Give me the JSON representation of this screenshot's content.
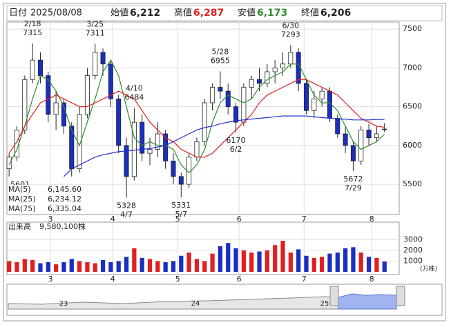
{
  "header": {
    "date_label": "日付",
    "date": "2025/08/08",
    "open_label": "始値",
    "open": "6,212",
    "high_label": "高値",
    "high": "6,287",
    "low_label": "安値",
    "low": "6,173",
    "close_label": "終値",
    "close": "6,206"
  },
  "chart_data": {
    "type": "candlestick",
    "x": [
      0,
      2.5,
      5,
      7.5,
      10,
      12.5,
      15,
      17.5,
      20,
      22.5,
      25,
      27.5,
      30,
      32.5,
      35,
      37.5,
      40,
      42.5,
      45,
      47.5,
      50,
      52.5,
      55,
      57.5,
      60,
      62.5,
      65,
      67.5,
      70,
      72.5,
      75,
      77.5,
      80,
      82.5,
      85,
      87.5,
      90,
      92.5,
      95,
      97.5,
      100,
      102.5,
      105,
      107.5,
      110,
      112.5,
      115,
      117.5,
      120
    ],
    "open": [
      5700,
      5850,
      6200,
      6850,
      7100,
      6900,
      6400,
      6550,
      6250,
      5700,
      6400,
      6900,
      7200,
      7050,
      6600,
      6000,
      5600,
      6300,
      5900,
      5950,
      6150,
      5800,
      5600,
      5500,
      5850,
      6050,
      6550,
      6750,
      6700,
      6500,
      6300,
      6750,
      6850,
      6800,
      6950,
      7000,
      7050,
      7200,
      6800,
      6450,
      6600,
      6700,
      6350,
      6150,
      6000,
      5800,
      6200,
      6100,
      6212
    ],
    "high": [
      5900,
      6250,
      6900,
      7315,
      7200,
      6950,
      6700,
      6600,
      6300,
      6500,
      7000,
      7311,
      7250,
      7100,
      6650,
      6100,
      6484,
      6400,
      6100,
      6300,
      6200,
      5900,
      5650,
      5900,
      6100,
      6600,
      6800,
      6955,
      6800,
      6550,
      6800,
      6900,
      7000,
      7050,
      7100,
      7200,
      7293,
      7250,
      6850,
      6700,
      6750,
      6750,
      6400,
      6250,
      6050,
      6250,
      6280,
      6250,
      6287
    ],
    "low": [
      5601,
      5800,
      6150,
      6800,
      6800,
      6300,
      6200,
      6150,
      5600,
      5650,
      6350,
      6850,
      6900,
      6500,
      5900,
      5328,
      5550,
      5800,
      5750,
      5850,
      5700,
      5500,
      5331,
      5450,
      5800,
      6000,
      6450,
      6600,
      6400,
      6170,
      6250,
      6600,
      6700,
      6750,
      6800,
      6900,
      7000,
      6700,
      6400,
      6350,
      6500,
      6300,
      6100,
      5900,
      5672,
      5750,
      6000,
      6050,
      6173
    ],
    "close": [
      5850,
      6200,
      6850,
      7100,
      6900,
      6400,
      6550,
      6250,
      5700,
      6400,
      6900,
      7200,
      7050,
      6600,
      6000,
      5600,
      6300,
      5900,
      5950,
      6150,
      5800,
      5600,
      5500,
      5850,
      6050,
      6550,
      6750,
      6700,
      6500,
      6300,
      6750,
      6850,
      6800,
      6950,
      7000,
      7050,
      7200,
      6800,
      6450,
      6600,
      6700,
      6350,
      6150,
      6000,
      5800,
      6200,
      6100,
      6150,
      6206
    ],
    "up_color": "#ffffff",
    "down_color": "#1a2fc0",
    "series": [
      {
        "name": "MA(5)",
        "legend_value": "6,145.60",
        "color": "#2e8b2e",
        "values": [
          5750,
          5950,
          6250,
          6600,
          6900,
          6850,
          6700,
          6500,
          6200,
          6000,
          6300,
          6600,
          6950,
          7100,
          6900,
          6500,
          6100,
          6000,
          6050,
          6000,
          6000,
          5950,
          5750,
          5650,
          5750,
          5950,
          6300,
          6550,
          6650,
          6600,
          6550,
          6600,
          6750,
          6850,
          6900,
          6950,
          7050,
          7050,
          6850,
          6650,
          6550,
          6550,
          6450,
          6250,
          6050,
          5950,
          6000,
          6050,
          6145.6
        ]
      },
      {
        "name": "MA(25)",
        "legend_value": "6,234.12",
        "color": "#e02020",
        "values": [
          5900,
          6050,
          6250,
          6400,
          6550,
          6600,
          6650,
          6600,
          6550,
          6500,
          6500,
          6550,
          6600,
          6650,
          6700,
          6650,
          6600,
          6450,
          6300,
          6200,
          6100,
          6050,
          5950,
          5900,
          5850,
          5850,
          5900,
          6000,
          6100,
          6200,
          6300,
          6400,
          6550,
          6650,
          6700,
          6750,
          6800,
          6850,
          6850,
          6800,
          6750,
          6700,
          6650,
          6550,
          6450,
          6350,
          6300,
          6250,
          6234.12
        ]
      },
      {
        "name": "MA(75)",
        "legend_value": "6,335.04",
        "color": "#2030d0",
        "values": [
          null,
          null,
          null,
          null,
          null,
          null,
          null,
          5600,
          5700,
          5750,
          5800,
          5850,
          5880,
          5900,
          5920,
          5930,
          5940,
          5950,
          5960,
          5980,
          6000,
          6050,
          6100,
          6150,
          6200,
          6230,
          6250,
          6280,
          6300,
          6320,
          6330,
          6340,
          6350,
          6360,
          6370,
          6380,
          6380,
          6380,
          6380,
          6370,
          6360,
          6350,
          6340,
          6340,
          6330,
          6330,
          6330,
          6335,
          6335.04
        ]
      }
    ],
    "xlim": [
      -0.7,
      124.7
    ],
    "xticks": [
      {
        "value": 13.2,
        "label": "3"
      },
      {
        "value": 33.1,
        "label": "4"
      },
      {
        "value": 53.9,
        "label": "5"
      },
      {
        "value": 73.5,
        "label": "6"
      },
      {
        "value": 94.3,
        "label": "7"
      },
      {
        "value": 115.9,
        "label": "8"
      }
    ],
    "ylim": [
      5110,
      7590
    ],
    "yticks": [
      5500,
      6000,
      6500,
      7000,
      7500
    ],
    "grid": true,
    "annotations": [
      {
        "x": 0,
        "value": 5601,
        "position": "below"
      },
      {
        "x": 7.5,
        "date": "2/18",
        "value": 7315,
        "position": "above"
      },
      {
        "x": 27.5,
        "date": "3/25",
        "value": 7311,
        "position": "above"
      },
      {
        "x": 40,
        "date": "4/10",
        "value": 6484,
        "position": "above"
      },
      {
        "x": 37.5,
        "date": "4/7",
        "value": 5328,
        "position": "below"
      },
      {
        "x": 55,
        "date": "5/7",
        "value": 5331,
        "position": "below"
      },
      {
        "x": 67.5,
        "date": "5/28",
        "value": 6955,
        "position": "above"
      },
      {
        "x": 72.5,
        "date": "6/2",
        "value": 6170,
        "position": "below"
      },
      {
        "x": 90,
        "date": "6/30",
        "value": 7293,
        "position": "above"
      },
      {
        "x": 110,
        "date": "7/29",
        "value": 5672,
        "position": "below"
      }
    ],
    "volume": {
      "title": "出来高",
      "latest": "9,580,100株",
      "unit": "(万株)",
      "up_color": "#e02020",
      "down_color": "#1a2fc0",
      "values": [
        1000,
        900,
        1200,
        1100,
        800,
        900,
        700,
        900,
        1200,
        1000,
        900,
        800,
        1100,
        900,
        1000,
        1400,
        2200,
        1300,
        1200,
        1000,
        900,
        1000,
        1500,
        1800,
        1200,
        1000,
        1700,
        2400,
        2700,
        2200,
        2000,
        1800,
        1900,
        2000,
        2500,
        2900,
        1800,
        2100,
        1500,
        1300,
        1400,
        1700,
        1800,
        2200,
        2300,
        1800,
        1400,
        1300,
        958.01
      ],
      "ylim": [
        0,
        3870
      ],
      "yticks": [
        1000,
        2000,
        3000
      ]
    },
    "navigator": {
      "labels": [
        "23",
        "24",
        "25"
      ]
    }
  }
}
